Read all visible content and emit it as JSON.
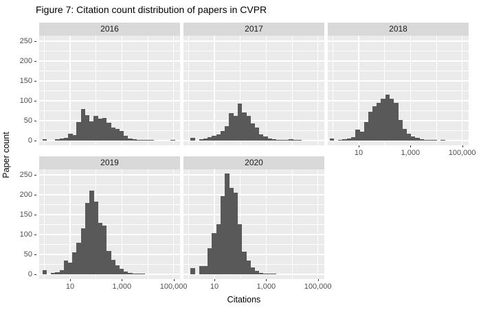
{
  "colors": {
    "panel_bg": "#EBEBEB",
    "strip_bg": "#D9D9D9",
    "strip_text": "#1A1A1A",
    "bar": "#595959",
    "grid": "#FFFFFF",
    "axis_text": "#4D4D4D",
    "tick_mark": "#333333",
    "title_text": "#000000"
  },
  "chart_data": {
    "type": "bar",
    "subtype": "faceted-histogram",
    "title": "Figure 7: Citation count distribution of papers in CVPR",
    "xlabel": "Citations",
    "ylabel": "Paper count",
    "x_scale": "log10",
    "x_tick_labels": [
      "10",
      "1,000",
      "100,000"
    ],
    "x_tick_log10": [
      1,
      3,
      5
    ],
    "x_minor_log10": [
      0,
      2,
      4
    ],
    "y_ticks": [
      0,
      50,
      100,
      150,
      200,
      250
    ],
    "ylim": [
      0,
      264
    ],
    "x_log10_range": [
      -0.2,
      5.25
    ],
    "grid": "on",
    "legend": "none",
    "bin_log10_width": 0.165,
    "facets": [
      {
        "label": "2016",
        "row": 0,
        "col": 0,
        "bin_log10_start": -0.07,
        "counts": [
          4,
          0,
          0,
          3,
          5,
          7,
          17,
          13,
          46,
          79,
          64,
          49,
          62,
          55,
          57,
          45,
          33,
          30,
          25,
          12,
          5,
          3,
          2,
          1,
          1,
          1,
          0,
          0,
          0,
          0,
          1
        ]
      },
      {
        "label": "2017",
        "row": 0,
        "col": 1,
        "bin_log10_start": 0.08,
        "counts": [
          7,
          0,
          3,
          5,
          8,
          12,
          16,
          24,
          36,
          69,
          62,
          93,
          71,
          62,
          43,
          32,
          16,
          10,
          6,
          3,
          2,
          1,
          1,
          4,
          1,
          1
        ]
      },
      {
        "label": "2018",
        "row": 0,
        "col": 2,
        "bin_log10_start": -0.12,
        "counts": [
          5,
          0,
          2,
          3,
          5,
          8,
          27,
          23,
          46,
          72,
          86,
          95,
          106,
          115,
          105,
          95,
          52,
          29,
          17,
          11,
          7,
          4,
          2,
          1,
          1,
          0,
          1
        ]
      },
      {
        "label": "2019",
        "row": 1,
        "col": 0,
        "bin_log10_start": -0.07,
        "counts": [
          10,
          0,
          4,
          6,
          10,
          34,
          29,
          55,
          80,
          115,
          180,
          210,
          183,
          129,
          122,
          59,
          36,
          22,
          13,
          7,
          4,
          2,
          1,
          1
        ]
      },
      {
        "label": "2020",
        "row": 1,
        "col": 1,
        "bin_log10_start": 0.08,
        "counts": [
          15,
          0,
          20,
          20,
          66,
          103,
          126,
          197,
          253,
          217,
          205,
          126,
          57,
          34,
          17,
          9,
          4,
          2,
          1,
          1
        ]
      }
    ]
  }
}
